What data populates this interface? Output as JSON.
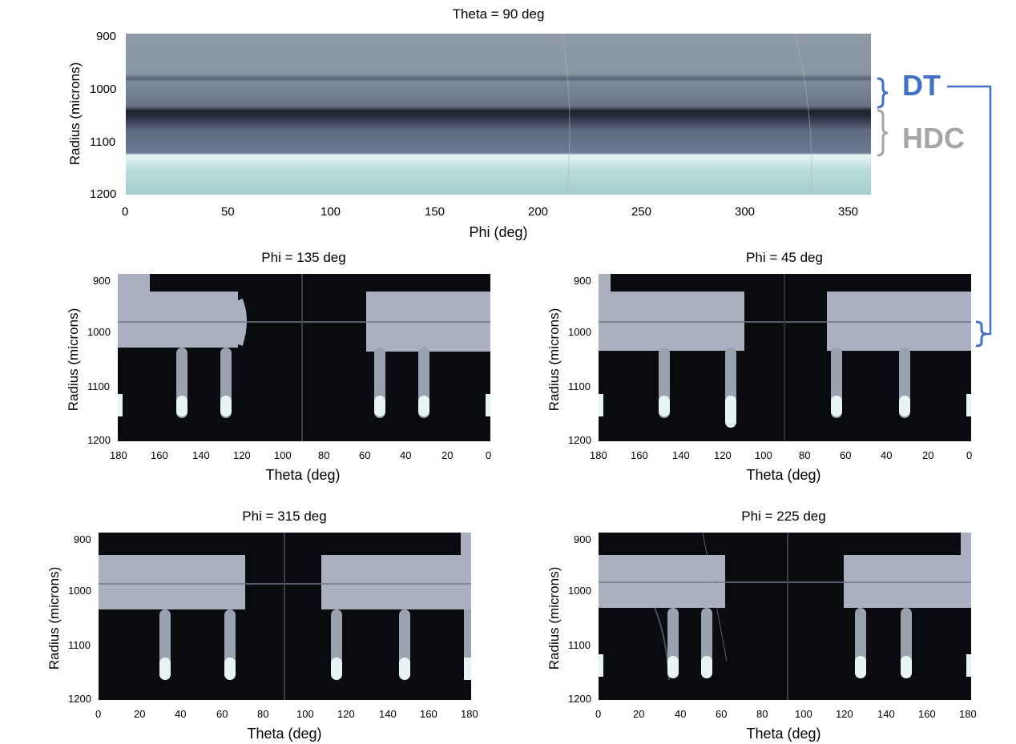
{
  "colors": {
    "dt": "#4470c4",
    "hdc": "#a6a6a6"
  },
  "annotations": {
    "dt": "DT",
    "hdc": "HDC"
  },
  "chart_data": [
    {
      "type": "heatmap",
      "title": "Theta = 90 deg",
      "xlabel": "Phi (deg)",
      "ylabel": "Radius (microns)",
      "xlim": [
        0,
        360
      ],
      "ylim": [
        1200,
        900
      ],
      "xticks": [
        "0",
        "50",
        "100",
        "150",
        "200",
        "250",
        "300",
        "350"
      ],
      "yticks": [
        "900",
        "1000",
        "1100",
        "1200"
      ]
    },
    {
      "type": "heatmap",
      "title": "Phi = 135 deg",
      "xlabel": "Theta (deg)",
      "ylabel": "Radius (microns)",
      "xlim": [
        180,
        0
      ],
      "ylim": [
        1200,
        900
      ],
      "xticks": [
        "180",
        "160",
        "140",
        "120",
        "100",
        "80",
        "60",
        "40",
        "20",
        "0"
      ],
      "yticks": [
        "900",
        "1000",
        "1100",
        "1200"
      ]
    },
    {
      "type": "heatmap",
      "title": "Phi = 45 deg",
      "xlabel": "Theta (deg)",
      "ylabel": "Radius (microns)",
      "xlim": [
        180,
        0
      ],
      "ylim": [
        1200,
        900
      ],
      "xticks": [
        "180",
        "160",
        "140",
        "120",
        "100",
        "80",
        "60",
        "40",
        "20",
        "0"
      ],
      "yticks": [
        "900",
        "1000",
        "1100",
        "1200"
      ]
    },
    {
      "type": "heatmap",
      "title": "Phi = 315 deg",
      "xlabel": "Theta (deg)",
      "ylabel": "Radius (microns)",
      "xlim": [
        0,
        180
      ],
      "ylim": [
        1200,
        900
      ],
      "xticks": [
        "0",
        "20",
        "40",
        "60",
        "80",
        "100",
        "120",
        "140",
        "160",
        "180"
      ],
      "yticks": [
        "900",
        "1000",
        "1100",
        "1200"
      ]
    },
    {
      "type": "heatmap",
      "title": "Phi = 225 deg",
      "xlabel": "Theta (deg)",
      "ylabel": "Radius (microns)",
      "xlim": [
        0,
        180
      ],
      "ylim": [
        1200,
        900
      ],
      "xticks": [
        "0",
        "20",
        "40",
        "60",
        "80",
        "100",
        "120",
        "140",
        "160",
        "180"
      ],
      "yticks": [
        "900",
        "1000",
        "1100",
        "1200"
      ]
    }
  ]
}
